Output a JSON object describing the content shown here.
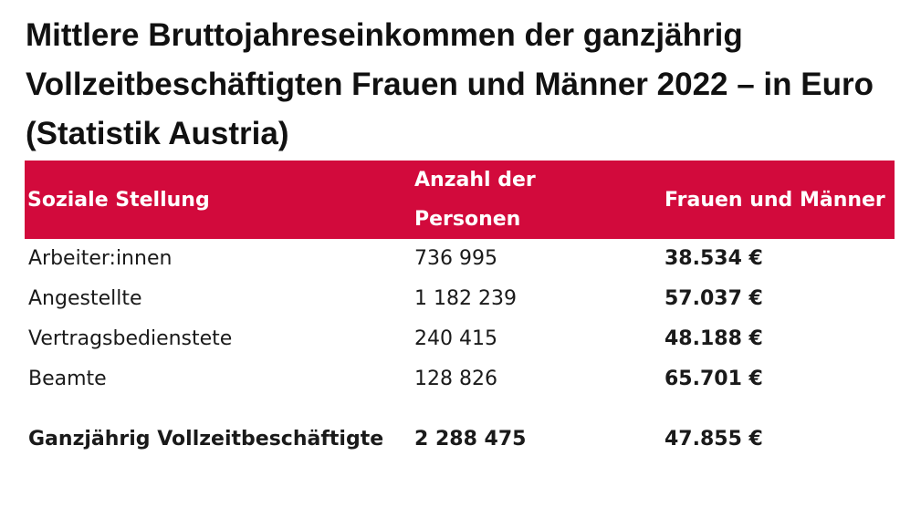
{
  "title": "Mittlere Bruttojahreseinkommen der ganzjährig Vollzeitbeschäftigten Frauen und Männer 2022 – in Euro (Statistik Austria)",
  "colors": {
    "header_background": "#d20a3c",
    "header_text": "#ffffff"
  },
  "table": {
    "headers": [
      "Soziale Stellung",
      "Anzahl der Personen",
      "Frauen und Männer"
    ],
    "rows": [
      [
        "Arbeiter:innen",
        "736 995",
        "38.534 €"
      ],
      [
        "Angestellte",
        "1 182 239",
        "57.037 €"
      ],
      [
        "Vertragsbedienstete",
        "240 415",
        "48.188 €"
      ],
      [
        "Beamte",
        "128 826",
        "65.701 €"
      ],
      [
        "Ganzjährig Vollzeitbeschäftigte",
        "2 288 475",
        "47.855 €"
      ]
    ]
  }
}
